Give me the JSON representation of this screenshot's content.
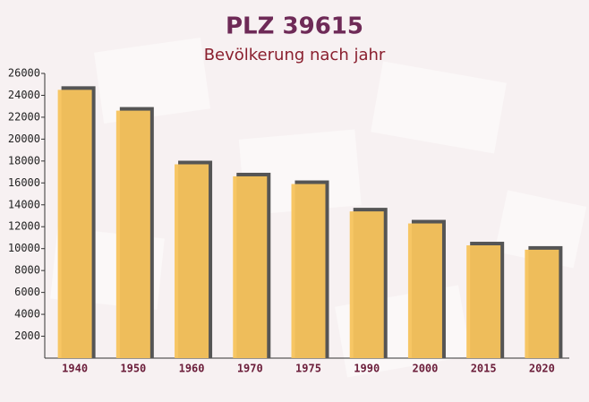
{
  "chart_data": {
    "type": "bar",
    "title": "PLZ 39615",
    "subtitle": "Bevölkerung nach jahr",
    "categories": [
      "1940",
      "1950",
      "1960",
      "1970",
      "1975",
      "1990",
      "2000",
      "2015",
      "2020"
    ],
    "values": [
      24500,
      22600,
      17700,
      16600,
      15900,
      13400,
      12300,
      10300,
      9900
    ],
    "color": "#f7c35c",
    "ylim": [
      0,
      26000
    ],
    "yticks": [
      2000,
      4000,
      6000,
      8000,
      10000,
      12000,
      14000,
      16000,
      18000,
      20000,
      22000,
      24000,
      26000
    ],
    "grid": false
  }
}
